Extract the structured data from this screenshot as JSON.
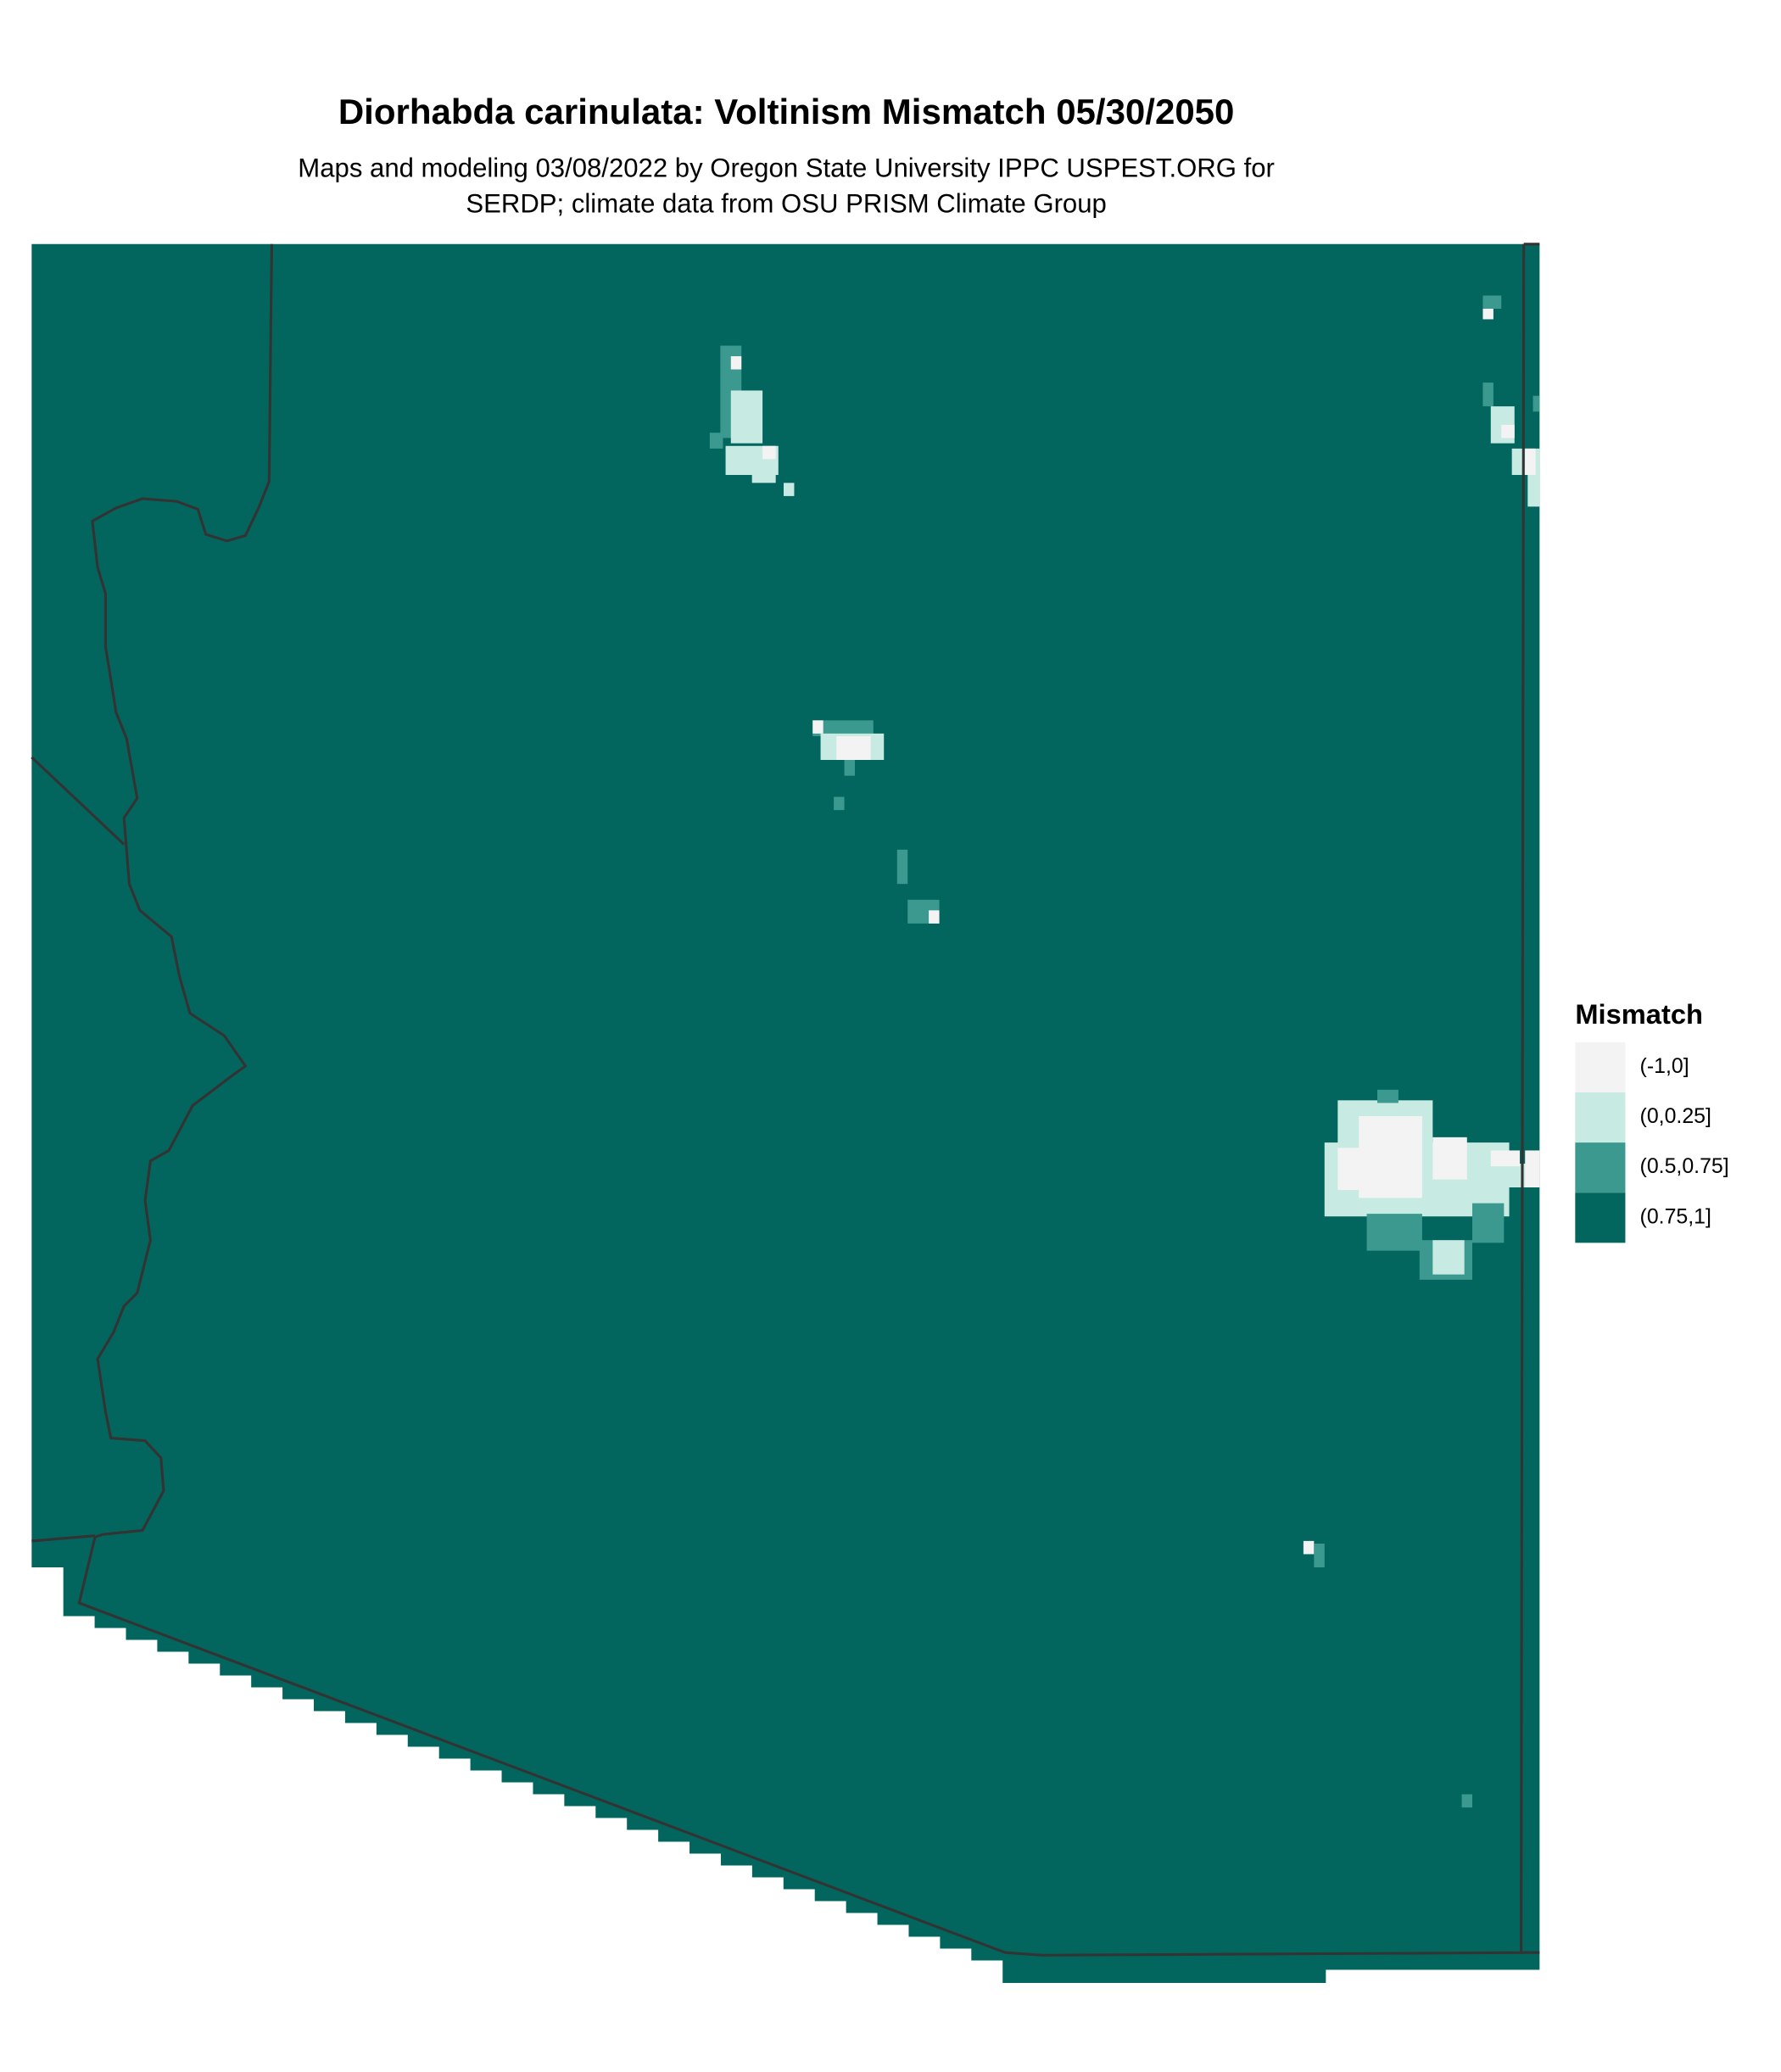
{
  "header": {
    "title": "Diorhabda carinulata: Voltinism Mismatch 05/30/2050",
    "subtitle_lines": [
      "Maps and modeling 03/08/2022 by Oregon State University IPPC USPEST.ORG for",
      "SERDP; climate data from OSU PRISM Climate Group"
    ]
  },
  "legend": {
    "title": "Mismatch",
    "items": [
      {
        "label": "(-1,0]",
        "color": "#f3f3f3"
      },
      {
        "label": "(0,0.25]",
        "color": "#c7eae3"
      },
      {
        "label": "(0.5,0.75]",
        "color": "#3b9990"
      },
      {
        "label": "(0.75,1]",
        "color": "#02665e"
      }
    ]
  }
}
